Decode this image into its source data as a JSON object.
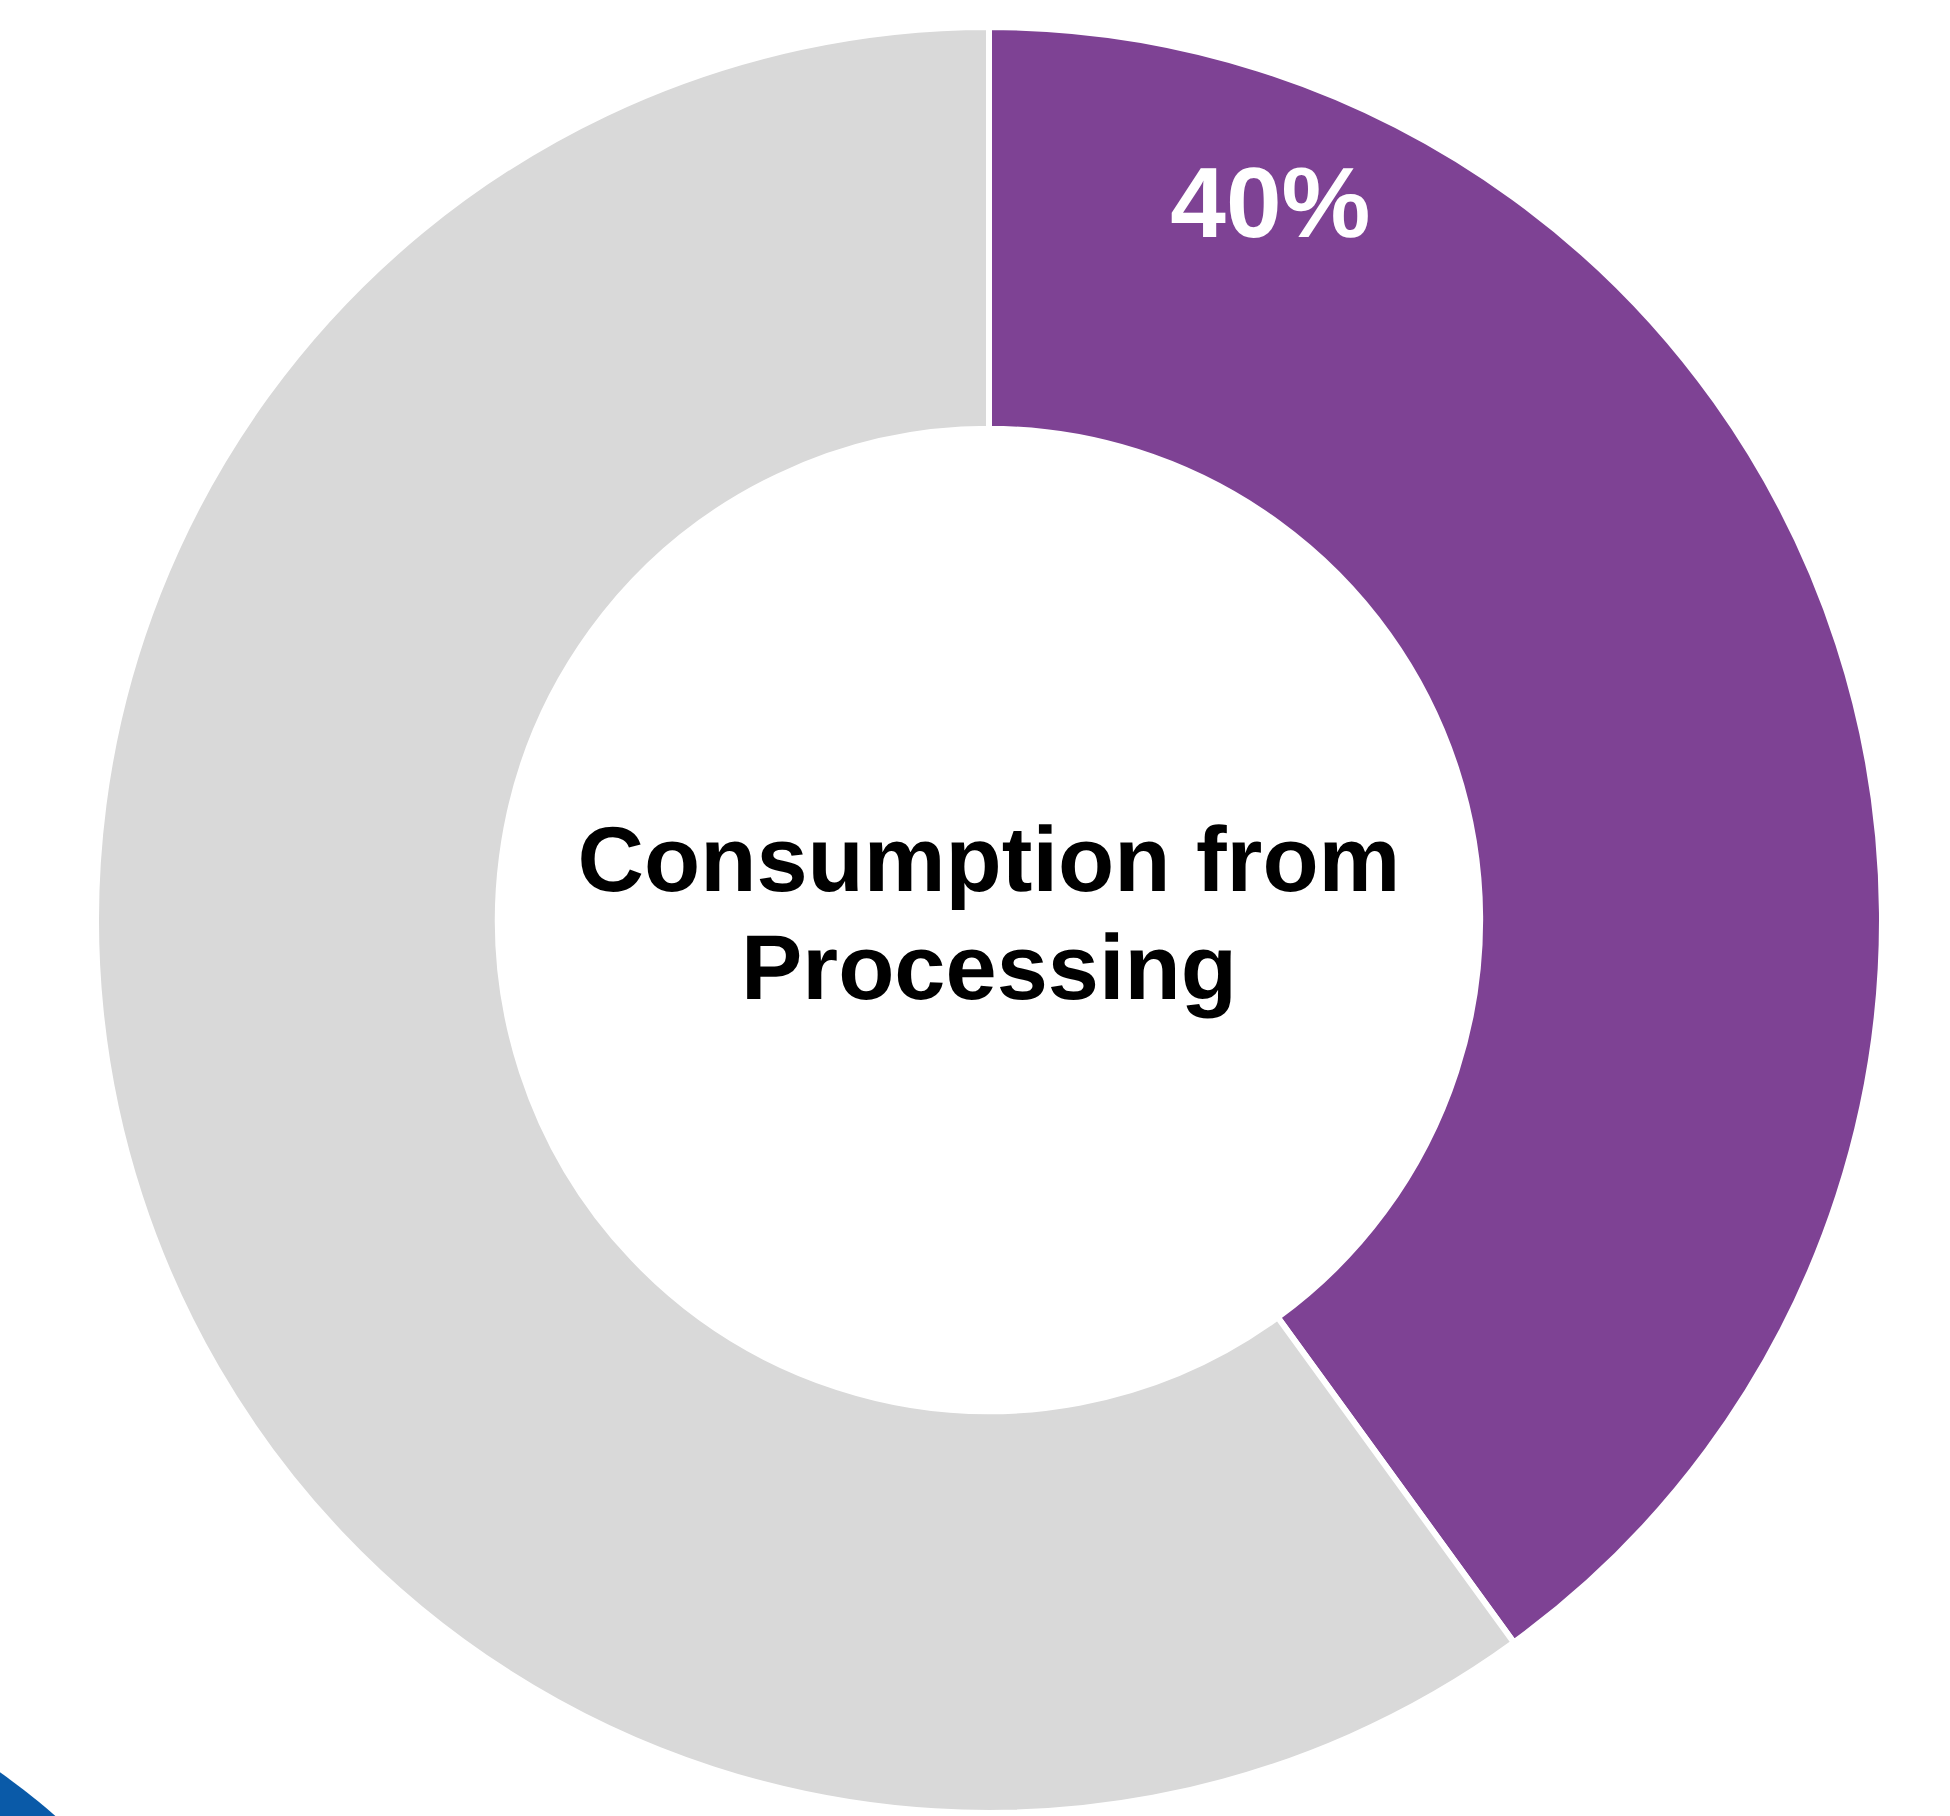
{
  "chart_data": {
    "type": "donut",
    "title": "Consumption from Processing",
    "categories": [
      null,
      null
    ],
    "values": [
      40,
      60
    ],
    "colors": [
      "#7e4294",
      "#d9d9d9"
    ],
    "value_labels": [
      "40%",
      null
    ]
  }
}
